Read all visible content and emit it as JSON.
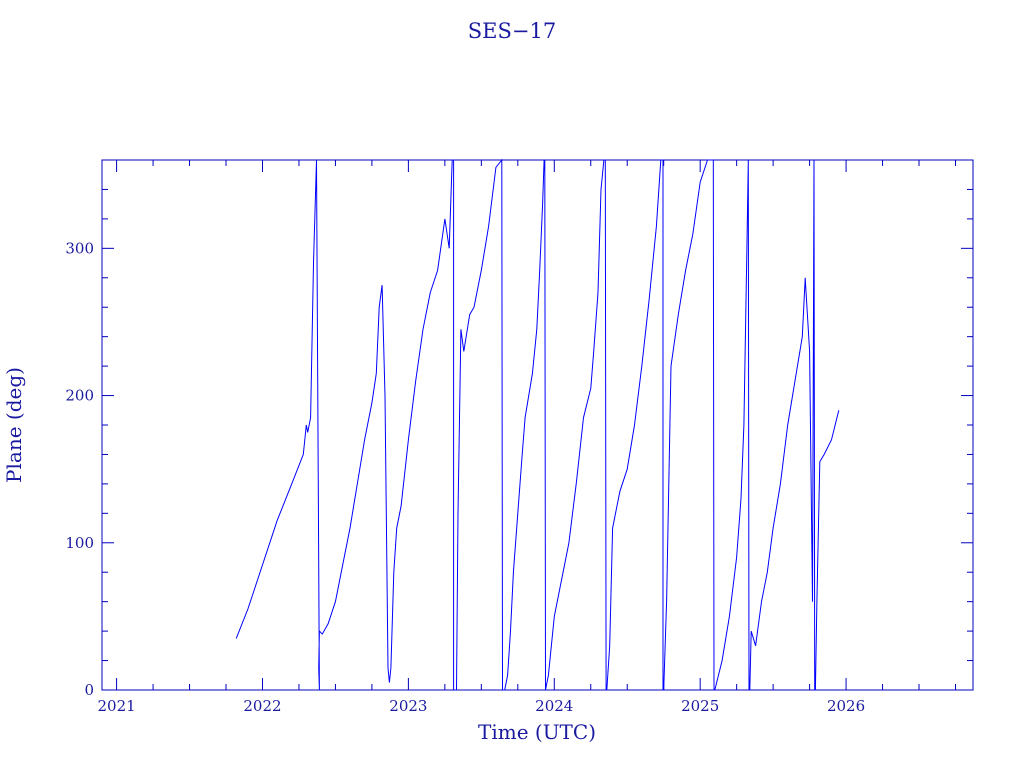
{
  "chart_data": {
    "type": "line",
    "title": "SES−17",
    "xlabel": "Time (UTC)",
    "ylabel": "Plane (deg)",
    "xlim": [
      2020.9,
      2026.87
    ],
    "ylim": [
      0,
      360
    ],
    "x_ticks": [
      "2021",
      "2022",
      "2023",
      "2024",
      "2025",
      "2026"
    ],
    "y_ticks": [
      "0",
      "100",
      "200",
      "300"
    ],
    "grid": false,
    "line_color": "#0000ff",
    "axis_color": "#0000c0",
    "series": [
      {
        "x": [
          2021.82,
          2021.9,
          2022.0,
          2022.1,
          2022.2,
          2022.28,
          2022.3,
          2022.31,
          2022.33,
          2022.35,
          2022.37,
          2022.37,
          2022.39,
          2022.385,
          2022.39,
          2022.39,
          2022.41,
          2022.45,
          2022.5,
          2022.55,
          2022.6,
          2022.65,
          2022.7,
          2022.75,
          2022.78,
          2022.8,
          2022.82,
          2022.84,
          2022.86,
          2022.86,
          2022.87,
          2022.88,
          2022.9,
          2022.92,
          2022.95,
          2023.0,
          2023.05,
          2023.1,
          2023.15,
          2023.2,
          2023.25,
          2023.28,
          2023.3,
          2023.31,
          2023.31,
          2023.33,
          2023.34,
          2023.35,
          2023.36,
          2023.38,
          2023.42,
          2023.45,
          2023.5,
          2023.55,
          2023.6,
          2023.64,
          2023.645,
          2023.66,
          2023.68,
          2023.7,
          2023.72,
          2023.75,
          2023.78,
          2023.8,
          2023.85,
          2023.88,
          2023.9,
          2023.92,
          2023.93,
          2023.935,
          2023.94,
          2023.96,
          2024.0,
          2024.05,
          2024.1,
          2024.15,
          2024.2,
          2024.25,
          2024.27,
          2024.3,
          2024.32,
          2024.34,
          2024.35,
          2024.355,
          2024.36,
          2024.38,
          2024.4,
          2024.45,
          2024.5,
          2024.55,
          2024.6,
          2024.65,
          2024.7,
          2024.73,
          2024.745,
          2024.745,
          2024.75,
          2024.77,
          2024.8,
          2024.85,
          2024.9,
          2024.95,
          2025.0,
          2025.05,
          2025.08,
          2025.09,
          2025.095,
          2025.1,
          2025.15,
          2025.2,
          2025.25,
          2025.28,
          2025.3,
          2025.32,
          2025.33,
          2025.335,
          2025.34,
          2025.35,
          2025.38,
          2025.42,
          2025.46,
          2025.5,
          2025.55,
          2025.6,
          2025.65,
          2025.7,
          2025.72,
          2025.75,
          2025.77,
          2025.78,
          2025.785,
          2025.79,
          2025.8,
          2025.82,
          2025.85,
          2025.9,
          2025.95
        ],
        "y": [
          35,
          55,
          85,
          115,
          140,
          160,
          180,
          175,
          185,
          290,
          360,
          360,
          0,
          15,
          40,
          40,
          38,
          45,
          60,
          85,
          110,
          140,
          170,
          195,
          215,
          260,
          275,
          200,
          15,
          15,
          5,
          15,
          80,
          110,
          125,
          170,
          210,
          245,
          270,
          285,
          320,
          300,
          360,
          360,
          0,
          0,
          120,
          180,
          245,
          230,
          255,
          260,
          285,
          315,
          355,
          360,
          0,
          0,
          10,
          40,
          80,
          120,
          160,
          185,
          215,
          245,
          285,
          330,
          360,
          360,
          0,
          10,
          50,
          75,
          100,
          140,
          185,
          205,
          230,
          270,
          340,
          360,
          360,
          0,
          0,
          30,
          110,
          135,
          150,
          180,
          220,
          265,
          315,
          360,
          360,
          0,
          0,
          60,
          220,
          255,
          285,
          310,
          345,
          360,
          360,
          360,
          0,
          0,
          20,
          50,
          90,
          130,
          180,
          300,
          360,
          0,
          0,
          40,
          30,
          60,
          80,
          110,
          140,
          180,
          210,
          240,
          280,
          230,
          60,
          360,
          0,
          0,
          60,
          155,
          160,
          170,
          190
        ]
      }
    ]
  }
}
